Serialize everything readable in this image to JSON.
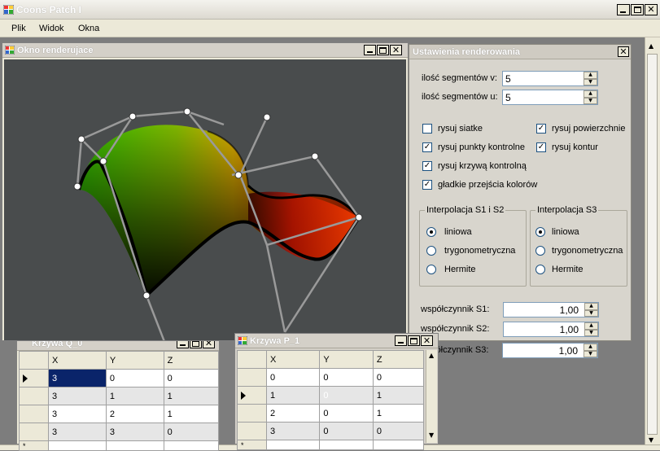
{
  "app": {
    "title": "Coons Patch I"
  },
  "menu": {
    "items": [
      "Plik",
      "Widok",
      "Okna"
    ]
  },
  "render_window": {
    "title": "Okno renderujace"
  },
  "settings": {
    "title": "Ustawienia renderowania",
    "segments_v": {
      "label": "ilość segmentów v:",
      "value": "5"
    },
    "segments_u": {
      "label": "ilość segmentów u:",
      "value": "5"
    },
    "checkboxes": [
      {
        "label": "rysuj siatke",
        "checked": false
      },
      {
        "label": "rysuj powierzchnie",
        "checked": true
      },
      {
        "label": "rysuj punkty kontrolne",
        "checked": true
      },
      {
        "label": "rysuj kontur",
        "checked": true
      },
      {
        "label": "rysuj krzywą kontrolną",
        "checked": true
      },
      {
        "label": "gładkie przejścia kolorów",
        "checked": true
      }
    ],
    "interp_s1s2": {
      "title": "Interpolacja S1 i S2",
      "options": [
        "liniowa",
        "trygonometryczna",
        "Hermite"
      ],
      "selected": 0
    },
    "interp_s3": {
      "title": "Interpolacja S3",
      "options": [
        "liniowa",
        "trygonometryczna",
        "Hermite"
      ],
      "selected": 0
    },
    "coef_s1": {
      "label": "współczynnik S1:",
      "value": "1,00"
    },
    "coef_s2": {
      "label": "współczynnik S2:",
      "value": "1,00"
    },
    "coef_s3": {
      "label": "współczynnik S3:",
      "value": "1,00"
    }
  },
  "grid_q": {
    "title": "Krzywa Q_0",
    "columns": [
      "X",
      "Y",
      "Z"
    ],
    "rows": [
      [
        "3",
        "0",
        "0"
      ],
      [
        "3",
        "1",
        "1"
      ],
      [
        "3",
        "2",
        "1"
      ],
      [
        "3",
        "3",
        "0"
      ]
    ],
    "new_row_marker": "*"
  },
  "grid_p": {
    "title": "Krzywa P_1",
    "columns": [
      "X",
      "Y",
      "Z"
    ],
    "rows": [
      [
        "0",
        "0",
        "0"
      ],
      [
        "1",
        "0",
        "1"
      ],
      [
        "2",
        "0",
        "1"
      ],
      [
        "3",
        "0",
        "0"
      ]
    ],
    "new_row_marker": "*"
  }
}
